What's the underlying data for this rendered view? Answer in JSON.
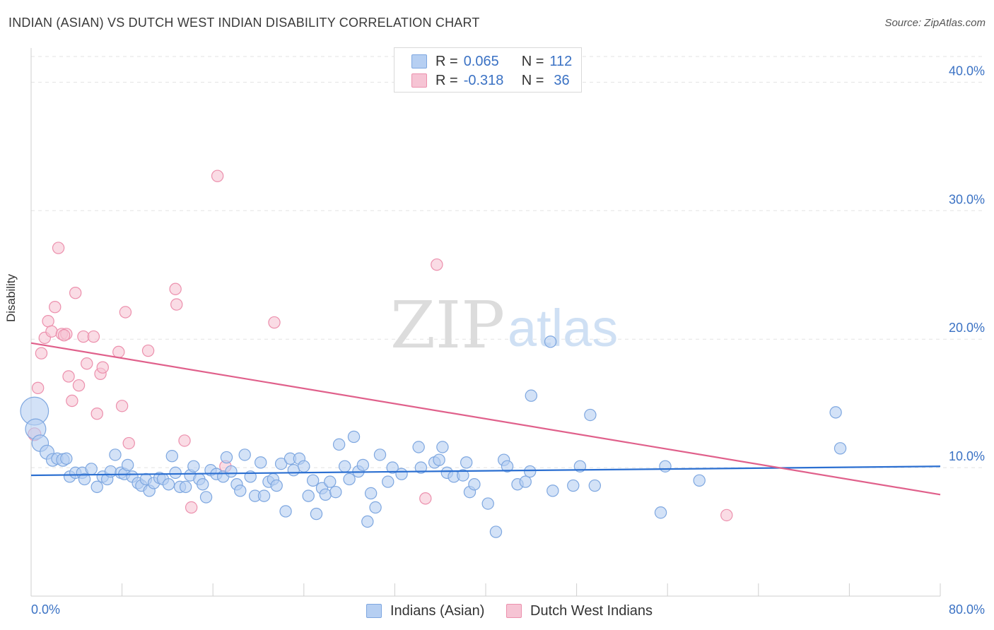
{
  "header": {
    "title": "INDIAN (ASIAN) VS DUTCH WEST INDIAN DISABILITY CORRELATION CHART",
    "source": "Source: ZipAtlas.com"
  },
  "stats": {
    "row1": {
      "r_label": "R =",
      "r_value": "0.065",
      "n_label": "N =",
      "n_value": "112"
    },
    "row2": {
      "r_label": "R =",
      "r_value": "-0.318",
      "n_label": "N =",
      "n_value": "36"
    }
  },
  "legend": {
    "blue_label": "Indians (Asian)",
    "pink_label": "Dutch West Indians"
  },
  "watermark": {
    "zip": "ZIP",
    "atlas": "atlas"
  },
  "colors": {
    "blue": "#7ea7e0",
    "blue_fill": "#b6cff2",
    "blue_line": "#2b6fd1",
    "pink": "#ec90ad",
    "pink_fill": "#f6c4d4",
    "pink_line": "#e0608b",
    "axis_text": "#3b72c4"
  },
  "chart_data": {
    "type": "scatter",
    "title": "INDIAN (ASIAN) VS DUTCH WEST INDIAN DISABILITY CORRELATION CHART",
    "xlabel": "",
    "ylabel": "Disability",
    "xlim": [
      0,
      80
    ],
    "ylim": [
      0,
      42
    ],
    "x_tick_labels": [
      "0.0%",
      "80.0%"
    ],
    "y_ticks": [
      10,
      20,
      30,
      40
    ],
    "y_tick_labels": [
      "10.0%",
      "20.0%",
      "30.0%",
      "40.0%"
    ],
    "grid": "horizontal dashed",
    "legend_position": "bottom-center",
    "series": [
      {
        "name": "Indians (Asian)",
        "color": "#7ea7e0",
        "trend": {
          "x": [
            0,
            80
          ],
          "y": [
            9.4,
            10.1
          ]
        },
        "points": [
          [
            0.3,
            14.4,
            2.2
          ],
          [
            0.4,
            13.0,
            1.6
          ],
          [
            0.8,
            11.9,
            1.3
          ],
          [
            1.4,
            11.2,
            1.1
          ],
          [
            1.9,
            10.6,
            1.0
          ],
          [
            2.3,
            10.7,
            0.9
          ],
          [
            2.8,
            10.6,
            1.0
          ],
          [
            3.1,
            10.7,
            0.9
          ],
          [
            3.4,
            9.3,
            0.9
          ],
          [
            3.9,
            9.6,
            0.9
          ],
          [
            4.5,
            9.6,
            0.9
          ],
          [
            4.7,
            9.1,
            0.9
          ],
          [
            5.3,
            9.9,
            0.9
          ],
          [
            5.8,
            8.5,
            0.9
          ],
          [
            6.3,
            9.3,
            0.9
          ],
          [
            6.7,
            9.1,
            0.9
          ],
          [
            7.0,
            9.7,
            0.9
          ],
          [
            7.4,
            11.0,
            0.9
          ],
          [
            7.9,
            9.6,
            0.9
          ],
          [
            8.2,
            9.5,
            0.9
          ],
          [
            8.5,
            10.2,
            0.9
          ],
          [
            8.9,
            9.3,
            0.9
          ],
          [
            9.4,
            8.8,
            0.9
          ],
          [
            9.7,
            8.6,
            0.9
          ],
          [
            10.1,
            9.1,
            0.9
          ],
          [
            10.4,
            8.2,
            0.9
          ],
          [
            10.8,
            8.8,
            0.9
          ],
          [
            11.3,
            9.2,
            0.9
          ],
          [
            11.6,
            9.1,
            0.9
          ],
          [
            12.1,
            8.7,
            0.9
          ],
          [
            12.4,
            10.9,
            0.9
          ],
          [
            12.7,
            9.6,
            0.9
          ],
          [
            13.1,
            8.5,
            0.9
          ],
          [
            13.6,
            8.5,
            0.9
          ],
          [
            14.0,
            9.4,
            0.9
          ],
          [
            14.3,
            10.1,
            0.9
          ],
          [
            14.8,
            9.1,
            0.9
          ],
          [
            15.1,
            8.7,
            0.9
          ],
          [
            15.4,
            7.7,
            0.9
          ],
          [
            15.8,
            9.8,
            0.9
          ],
          [
            16.3,
            9.5,
            0.9
          ],
          [
            16.9,
            9.3,
            0.9
          ],
          [
            17.2,
            10.8,
            0.9
          ],
          [
            17.6,
            9.7,
            0.9
          ],
          [
            18.1,
            8.7,
            0.9
          ],
          [
            18.4,
            8.2,
            0.9
          ],
          [
            18.8,
            11.0,
            0.9
          ],
          [
            19.3,
            9.3,
            0.9
          ],
          [
            19.7,
            7.8,
            0.9
          ],
          [
            20.2,
            10.4,
            0.9
          ],
          [
            20.5,
            7.8,
            0.9
          ],
          [
            20.9,
            8.9,
            0.9
          ],
          [
            21.3,
            9.1,
            0.9
          ],
          [
            21.6,
            8.6,
            0.9
          ],
          [
            22.0,
            10.3,
            0.9
          ],
          [
            22.4,
            6.6,
            0.9
          ],
          [
            22.8,
            10.7,
            0.9
          ],
          [
            23.1,
            9.8,
            0.9
          ],
          [
            23.6,
            10.7,
            0.9
          ],
          [
            24.0,
            10.1,
            0.9
          ],
          [
            24.4,
            7.8,
            0.9
          ],
          [
            24.8,
            9.0,
            0.9
          ],
          [
            25.1,
            6.4,
            0.9
          ],
          [
            25.6,
            8.4,
            0.9
          ],
          [
            25.9,
            7.9,
            0.9
          ],
          [
            26.3,
            8.9,
            0.9
          ],
          [
            26.8,
            8.1,
            0.9
          ],
          [
            27.1,
            11.8,
            0.9
          ],
          [
            27.6,
            10.1,
            0.9
          ],
          [
            28.0,
            9.1,
            0.9
          ],
          [
            28.4,
            12.4,
            0.9
          ],
          [
            28.8,
            9.7,
            0.9
          ],
          [
            29.2,
            10.2,
            0.9
          ],
          [
            29.6,
            5.8,
            0.9
          ],
          [
            29.9,
            8.0,
            0.9
          ],
          [
            30.3,
            6.9,
            0.9
          ],
          [
            30.7,
            11.0,
            0.9
          ],
          [
            31.4,
            8.9,
            0.9
          ],
          [
            31.8,
            10.0,
            0.9
          ],
          [
            32.6,
            9.5,
            0.9
          ],
          [
            34.1,
            11.6,
            0.9
          ],
          [
            34.3,
            10.0,
            0.9
          ],
          [
            35.5,
            10.4,
            0.9
          ],
          [
            35.9,
            10.6,
            0.9
          ],
          [
            36.2,
            11.6,
            0.9
          ],
          [
            36.6,
            9.6,
            0.9
          ],
          [
            37.2,
            9.3,
            0.9
          ],
          [
            38.0,
            9.4,
            0.9
          ],
          [
            38.3,
            10.4,
            0.9
          ],
          [
            38.6,
            8.1,
            0.9
          ],
          [
            39.0,
            8.7,
            0.9
          ],
          [
            40.2,
            7.2,
            0.9
          ],
          [
            40.9,
            5.0,
            0.9
          ],
          [
            41.6,
            10.6,
            0.9
          ],
          [
            41.9,
            10.1,
            0.9
          ],
          [
            42.8,
            8.7,
            0.9
          ],
          [
            43.5,
            8.9,
            0.9
          ],
          [
            43.9,
            9.7,
            0.9
          ],
          [
            44.0,
            15.6,
            0.9
          ],
          [
            45.7,
            19.8,
            0.9
          ],
          [
            45.9,
            8.2,
            0.9
          ],
          [
            47.7,
            8.6,
            0.9
          ],
          [
            48.3,
            10.1,
            0.9
          ],
          [
            49.2,
            14.1,
            0.9
          ],
          [
            49.6,
            8.6,
            0.9
          ],
          [
            55.4,
            6.5,
            0.9
          ],
          [
            55.8,
            10.1,
            0.9
          ],
          [
            58.8,
            9.0,
            0.9
          ],
          [
            70.8,
            14.3,
            0.9
          ],
          [
            71.2,
            11.5,
            0.9
          ]
        ]
      },
      {
        "name": "Dutch West Indians",
        "color": "#ec90ad",
        "trend": {
          "x": [
            0,
            80
          ],
          "y": [
            19.7,
            7.9
          ]
        },
        "points": [
          [
            0.3,
            12.6,
            1.0
          ],
          [
            0.6,
            16.2,
            0.9
          ],
          [
            0.9,
            18.9,
            0.9
          ],
          [
            1.2,
            20.1,
            0.9
          ],
          [
            1.5,
            21.4,
            0.9
          ],
          [
            1.8,
            20.6,
            0.9
          ],
          [
            2.1,
            22.5,
            0.9
          ],
          [
            2.4,
            27.1,
            0.9
          ],
          [
            2.7,
            20.4,
            0.9
          ],
          [
            3.1,
            20.4,
            0.9
          ],
          [
            3.3,
            17.1,
            0.9
          ],
          [
            3.6,
            15.2,
            0.9
          ],
          [
            3.9,
            23.6,
            0.9
          ],
          [
            4.2,
            16.4,
            0.9
          ],
          [
            4.6,
            20.2,
            0.9
          ],
          [
            4.9,
            18.1,
            0.9
          ],
          [
            5.5,
            20.2,
            0.9
          ],
          [
            5.8,
            14.2,
            0.9
          ],
          [
            6.1,
            17.3,
            0.9
          ],
          [
            6.3,
            17.8,
            0.9
          ],
          [
            7.7,
            19.0,
            0.9
          ],
          [
            8.0,
            14.8,
            0.9
          ],
          [
            8.3,
            22.1,
            0.9
          ],
          [
            8.6,
            11.9,
            0.9
          ],
          [
            10.3,
            19.1,
            0.9
          ],
          [
            12.7,
            23.9,
            0.9
          ],
          [
            12.8,
            22.7,
            0.9
          ],
          [
            13.5,
            12.1,
            0.9
          ],
          [
            14.1,
            6.9,
            0.9
          ],
          [
            16.4,
            32.7,
            0.9
          ],
          [
            17.1,
            10.1,
            0.9
          ],
          [
            21.4,
            21.3,
            0.9
          ],
          [
            34.7,
            7.6,
            0.9
          ],
          [
            35.7,
            25.8,
            0.9
          ],
          [
            61.2,
            6.3,
            0.9
          ],
          [
            2.9,
            20.3,
            0.9
          ]
        ]
      }
    ]
  }
}
